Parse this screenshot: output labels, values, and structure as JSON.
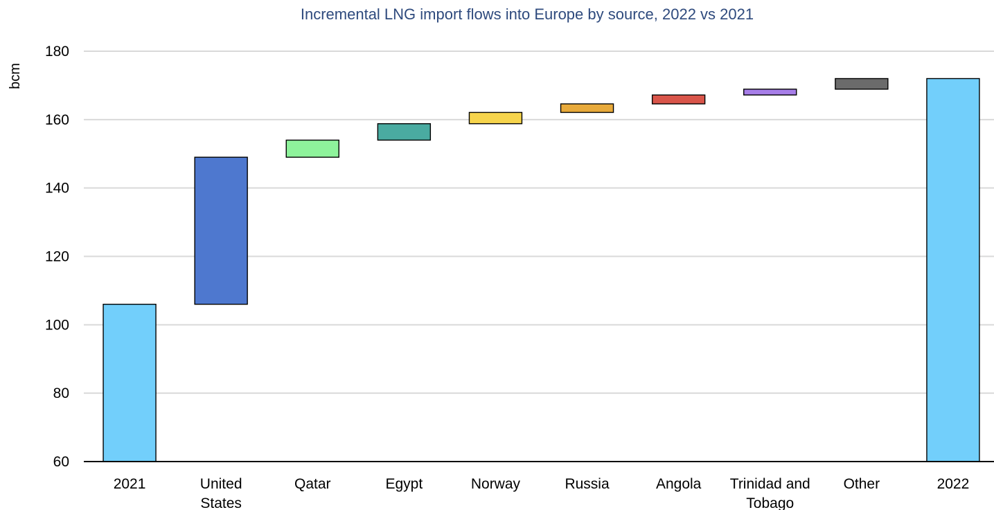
{
  "chart_data": {
    "type": "waterfall",
    "title": "Incremental LNG import flows into Europe by source, 2022 vs 2021",
    "ylabel": "bcm",
    "xlabel": "",
    "ylim": [
      60,
      180
    ],
    "yticks": [
      60,
      80,
      100,
      120,
      140,
      160,
      180
    ],
    "grid": true,
    "bars": [
      {
        "label": [
          "2021"
        ],
        "start": 60,
        "end": 106,
        "color": "#72cffb",
        "kind": "total"
      },
      {
        "label": [
          "United",
          "States"
        ],
        "start": 106,
        "end": 149,
        "color": "#4e78cf",
        "kind": "increment"
      },
      {
        "label": [
          "Qatar"
        ],
        "start": 149,
        "end": 154,
        "color": "#8ef39b",
        "kind": "increment"
      },
      {
        "label": [
          "Egypt"
        ],
        "start": 154,
        "end": 158.8,
        "color": "#4aaba1",
        "kind": "increment"
      },
      {
        "label": [
          "Norway"
        ],
        "start": 158.8,
        "end": 162.1,
        "color": "#f6d44c",
        "kind": "increment"
      },
      {
        "label": [
          "Russia"
        ],
        "start": 162.1,
        "end": 164.6,
        "color": "#e8aa3b",
        "kind": "increment"
      },
      {
        "label": [
          "Angola"
        ],
        "start": 164.6,
        "end": 167.2,
        "color": "#d9554a",
        "kind": "increment"
      },
      {
        "label": [
          "Trinidad and",
          "Tobago"
        ],
        "start": 167.2,
        "end": 168.9,
        "color": "#a77ee8",
        "kind": "increment"
      },
      {
        "label": [
          "Other"
        ],
        "start": 168.9,
        "end": 172,
        "color": "#6b6b6b",
        "kind": "increment"
      },
      {
        "label": [
          "2022"
        ],
        "start": 60,
        "end": 172,
        "color": "#72cffb",
        "kind": "total"
      }
    ]
  }
}
